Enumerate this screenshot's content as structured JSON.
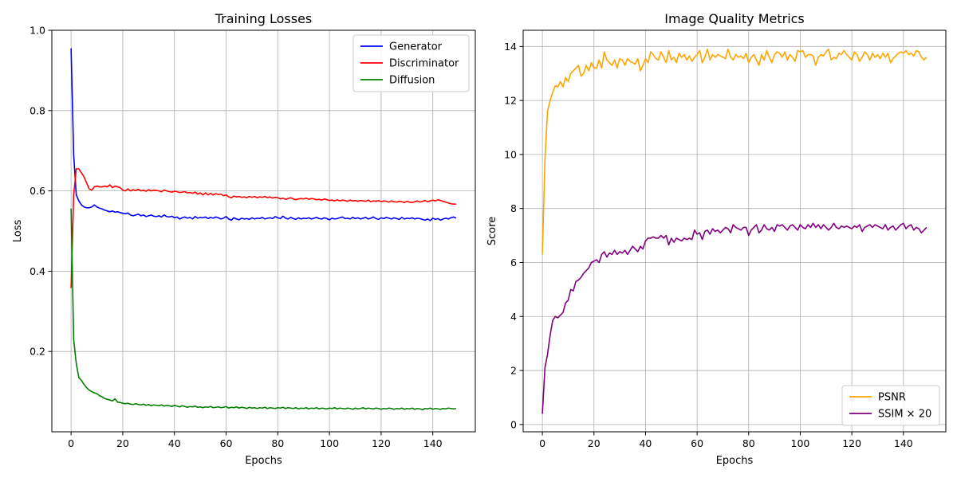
{
  "chart_data": [
    {
      "type": "line",
      "title": "Training Losses",
      "xlabel": "Epochs",
      "ylabel": "Loss",
      "xlim": [
        -7.45,
        156.45
      ],
      "ylim": [
        0.0,
        1.0
      ],
      "xticks": [
        0,
        20,
        40,
        60,
        80,
        100,
        120,
        140
      ],
      "yticks": [
        0.2,
        0.4,
        0.6,
        0.8,
        1.0
      ],
      "ytick_decimals": 1,
      "grid": true,
      "legend": "top-right",
      "series": [
        {
          "name": "Generator",
          "color": "#0000ff",
          "values": [
            0.955,
            0.69,
            0.59,
            0.575,
            0.565,
            0.56,
            0.558,
            0.558,
            0.56,
            0.565,
            0.56,
            0.557,
            0.555,
            0.552,
            0.55,
            0.548,
            0.55,
            0.547,
            0.548,
            0.546,
            0.544,
            0.543,
            0.545,
            0.54,
            0.538,
            0.54,
            0.542,
            0.538,
            0.54,
            0.536,
            0.538,
            0.54,
            0.537,
            0.536,
            0.538,
            0.535,
            0.54,
            0.536,
            0.535,
            0.537,
            0.533,
            0.535,
            0.53,
            0.533,
            0.535,
            0.532,
            0.534,
            0.53,
            0.536,
            0.532,
            0.534,
            0.533,
            0.535,
            0.531,
            0.534,
            0.532,
            0.535,
            0.533,
            0.53,
            0.532,
            0.536,
            0.53,
            0.527,
            0.533,
            0.53,
            0.528,
            0.532,
            0.53,
            0.531,
            0.529,
            0.533,
            0.53,
            0.532,
            0.531,
            0.534,
            0.53,
            0.532,
            0.533,
            0.531,
            0.536,
            0.533,
            0.531,
            0.537,
            0.532,
            0.53,
            0.534,
            0.531,
            0.529,
            0.533,
            0.53,
            0.532,
            0.531,
            0.533,
            0.53,
            0.532,
            0.534,
            0.531,
            0.53,
            0.533,
            0.531,
            0.528,
            0.532,
            0.53,
            0.531,
            0.533,
            0.535,
            0.531,
            0.532,
            0.53,
            0.534,
            0.531,
            0.533,
            0.53,
            0.532,
            0.534,
            0.53,
            0.532,
            0.535,
            0.531,
            0.529,
            0.533,
            0.531,
            0.534,
            0.532,
            0.53,
            0.533,
            0.531,
            0.529,
            0.534,
            0.53,
            0.532,
            0.531,
            0.533,
            0.53,
            0.532,
            0.531,
            0.529,
            0.527,
            0.53,
            0.526,
            0.532,
            0.529,
            0.531,
            0.527,
            0.53,
            0.532,
            0.53,
            0.533,
            0.535,
            0.532
          ]
        },
        {
          "name": "Discriminator",
          "color": "#ff0000",
          "values": [
            0.358,
            0.59,
            0.655,
            0.655,
            0.645,
            0.635,
            0.62,
            0.605,
            0.602,
            0.61,
            0.612,
            0.61,
            0.61,
            0.612,
            0.61,
            0.615,
            0.608,
            0.612,
            0.61,
            0.608,
            0.602,
            0.6,
            0.605,
            0.6,
            0.603,
            0.601,
            0.604,
            0.6,
            0.602,
            0.599,
            0.603,
            0.6,
            0.602,
            0.601,
            0.6,
            0.598,
            0.602,
            0.6,
            0.598,
            0.597,
            0.599,
            0.598,
            0.596,
            0.597,
            0.598,
            0.595,
            0.596,
            0.594,
            0.597,
            0.592,
            0.595,
            0.59,
            0.595,
            0.59,
            0.594,
            0.59,
            0.593,
            0.591,
            0.592,
            0.588,
            0.59,
            0.585,
            0.583,
            0.587,
            0.585,
            0.586,
            0.584,
            0.585,
            0.583,
            0.586,
            0.584,
            0.586,
            0.583,
            0.585,
            0.584,
            0.586,
            0.583,
            0.585,
            0.582,
            0.584,
            0.583,
            0.58,
            0.582,
            0.579,
            0.581,
            0.583,
            0.58,
            0.578,
            0.58,
            0.581,
            0.58,
            0.582,
            0.579,
            0.581,
            0.58,
            0.578,
            0.579,
            0.577,
            0.58,
            0.578,
            0.576,
            0.577,
            0.575,
            0.578,
            0.575,
            0.577,
            0.576,
            0.574,
            0.577,
            0.575,
            0.576,
            0.574,
            0.576,
            0.575,
            0.574,
            0.577,
            0.573,
            0.575,
            0.574,
            0.576,
            0.573,
            0.575,
            0.574,
            0.572,
            0.575,
            0.573,
            0.572,
            0.574,
            0.573,
            0.571,
            0.574,
            0.572,
            0.571,
            0.573,
            0.575,
            0.572,
            0.574,
            0.576,
            0.573,
            0.575,
            0.577,
            0.575,
            0.578,
            0.576,
            0.574,
            0.572,
            0.57,
            0.568,
            0.567,
            0.567
          ]
        },
        {
          "name": "Diffusion",
          "color": "#008000",
          "values": [
            0.556,
            0.23,
            0.17,
            0.135,
            0.128,
            0.118,
            0.11,
            0.104,
            0.1,
            0.097,
            0.095,
            0.09,
            0.087,
            0.083,
            0.081,
            0.079,
            0.077,
            0.082,
            0.074,
            0.073,
            0.071,
            0.07,
            0.071,
            0.069,
            0.068,
            0.07,
            0.068,
            0.067,
            0.069,
            0.066,
            0.068,
            0.065,
            0.067,
            0.066,
            0.065,
            0.067,
            0.064,
            0.066,
            0.065,
            0.063,
            0.066,
            0.064,
            0.062,
            0.065,
            0.063,
            0.061,
            0.063,
            0.062,
            0.064,
            0.061,
            0.062,
            0.06,
            0.062,
            0.061,
            0.063,
            0.06,
            0.061,
            0.062,
            0.06,
            0.061,
            0.063,
            0.059,
            0.061,
            0.06,
            0.062,
            0.059,
            0.061,
            0.06,
            0.058,
            0.061,
            0.059,
            0.06,
            0.058,
            0.06,
            0.059,
            0.061,
            0.058,
            0.06,
            0.059,
            0.058,
            0.06,
            0.059,
            0.061,
            0.058,
            0.06,
            0.059,
            0.058,
            0.06,
            0.057,
            0.059,
            0.058,
            0.06,
            0.057,
            0.059,
            0.058,
            0.06,
            0.057,
            0.059,
            0.058,
            0.057,
            0.059,
            0.058,
            0.06,
            0.057,
            0.059,
            0.058,
            0.057,
            0.059,
            0.058,
            0.056,
            0.059,
            0.057,
            0.058,
            0.06,
            0.057,
            0.059,
            0.058,
            0.057,
            0.059,
            0.058,
            0.056,
            0.058,
            0.057,
            0.059,
            0.058,
            0.056,
            0.058,
            0.057,
            0.059,
            0.056,
            0.058,
            0.057,
            0.059,
            0.056,
            0.058,
            0.057,
            0.055,
            0.058,
            0.057,
            0.059,
            0.056,
            0.058,
            0.057,
            0.056,
            0.058,
            0.057,
            0.059,
            0.058,
            0.057,
            0.058
          ]
        }
      ]
    },
    {
      "type": "line",
      "title": "Image Quality Metrics",
      "xlabel": "Epochs",
      "ylabel": "Score",
      "xlim": [
        -7.45,
        156.45
      ],
      "ylim": [
        -0.27,
        14.6
      ],
      "xticks": [
        0,
        20,
        40,
        60,
        80,
        100,
        120,
        140
      ],
      "yticks": [
        0,
        2,
        4,
        6,
        8,
        10,
        12,
        14
      ],
      "ytick_decimals": 0,
      "grid": true,
      "legend": "bottom-right",
      "series": [
        {
          "name": "PSNR",
          "color": "#ffa500",
          "values": [
            6.3,
            9.8,
            11.6,
            12.0,
            12.3,
            12.55,
            12.5,
            12.7,
            12.5,
            12.85,
            12.7,
            13.0,
            13.1,
            13.2,
            13.3,
            12.9,
            13.0,
            13.3,
            13.1,
            13.4,
            13.2,
            13.2,
            13.5,
            13.2,
            13.8,
            13.5,
            13.4,
            13.3,
            13.5,
            13.2,
            13.55,
            13.5,
            13.3,
            13.55,
            13.45,
            13.4,
            13.35,
            13.55,
            13.1,
            13.3,
            13.55,
            13.4,
            13.8,
            13.7,
            13.55,
            13.5,
            13.8,
            13.6,
            13.4,
            13.85,
            13.5,
            13.6,
            13.4,
            13.75,
            13.6,
            13.7,
            13.5,
            13.65,
            13.45,
            13.6,
            13.7,
            13.85,
            13.4,
            13.6,
            13.9,
            13.5,
            13.7,
            13.6,
            13.7,
            13.65,
            13.6,
            13.55,
            13.9,
            13.6,
            13.5,
            13.7,
            13.6,
            13.65,
            13.55,
            13.75,
            13.4,
            13.6,
            13.7,
            13.5,
            13.3,
            13.7,
            13.5,
            13.85,
            13.6,
            13.4,
            13.7,
            13.8,
            13.75,
            13.6,
            13.8,
            13.5,
            13.7,
            13.6,
            13.45,
            13.85,
            13.8,
            13.85,
            13.6,
            13.7,
            13.7,
            13.65,
            13.3,
            13.6,
            13.7,
            13.65,
            13.8,
            13.9,
            13.5,
            13.6,
            13.55,
            13.75,
            13.7,
            13.85,
            13.7,
            13.6,
            13.5,
            13.8,
            13.7,
            13.45,
            13.6,
            13.8,
            13.7,
            13.5,
            13.75,
            13.6,
            13.7,
            13.55,
            13.75,
            13.6,
            13.75,
            13.4,
            13.55,
            13.65,
            13.75,
            13.8,
            13.75,
            13.85,
            13.7,
            13.75,
            13.65,
            13.85,
            13.8,
            13.6,
            13.5,
            13.6
          ]
        },
        {
          "name": "SSIM × 20",
          "color": "#800080",
          "values": [
            0.4,
            2.1,
            2.6,
            3.3,
            3.85,
            4.0,
            3.95,
            4.05,
            4.15,
            4.5,
            4.6,
            5.0,
            4.95,
            5.3,
            5.35,
            5.45,
            5.6,
            5.7,
            5.8,
            6.0,
            6.05,
            6.1,
            6.0,
            6.3,
            6.4,
            6.2,
            6.35,
            6.3,
            6.45,
            6.3,
            6.4,
            6.35,
            6.45,
            6.3,
            6.45,
            6.6,
            6.5,
            6.4,
            6.6,
            6.5,
            6.8,
            6.9,
            6.9,
            6.95,
            6.9,
            6.9,
            7.0,
            6.9,
            7.0,
            6.65,
            6.9,
            6.75,
            6.9,
            6.85,
            6.8,
            6.9,
            6.85,
            6.9,
            6.85,
            7.2,
            7.05,
            7.1,
            6.85,
            7.15,
            7.2,
            7.05,
            7.25,
            7.15,
            7.2,
            7.1,
            7.2,
            7.3,
            7.25,
            7.1,
            7.4,
            7.3,
            7.25,
            7.2,
            7.3,
            7.3,
            7.0,
            7.2,
            7.3,
            7.4,
            7.1,
            7.2,
            7.4,
            7.25,
            7.2,
            7.3,
            7.15,
            7.4,
            7.35,
            7.4,
            7.3,
            7.2,
            7.35,
            7.4,
            7.3,
            7.2,
            7.4,
            7.3,
            7.25,
            7.4,
            7.3,
            7.45,
            7.3,
            7.4,
            7.25,
            7.4,
            7.3,
            7.2,
            7.3,
            7.45,
            7.3,
            7.25,
            7.35,
            7.3,
            7.35,
            7.3,
            7.25,
            7.35,
            7.3,
            7.4,
            7.15,
            7.3,
            7.35,
            7.4,
            7.3,
            7.4,
            7.35,
            7.3,
            7.25,
            7.4,
            7.2,
            7.3,
            7.35,
            7.2,
            7.3,
            7.4,
            7.45,
            7.25,
            7.35,
            7.4,
            7.2,
            7.3,
            7.25,
            7.1,
            7.2,
            7.3
          ]
        }
      ]
    }
  ]
}
